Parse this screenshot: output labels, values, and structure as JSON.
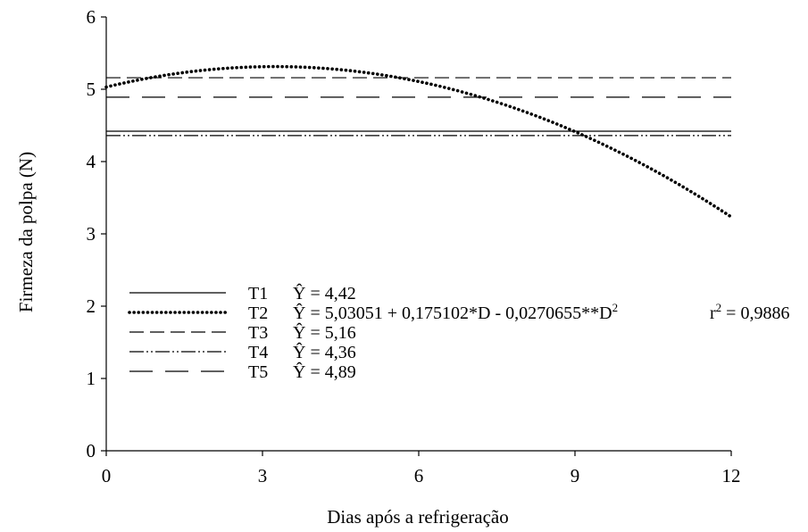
{
  "chart_data": {
    "type": "line",
    "title": "",
    "xlabel": "Dias após a refrigeração",
    "ylabel": "Firmeza da polpa (N)",
    "xlim": [
      0,
      12
    ],
    "ylim": [
      0,
      6
    ],
    "xticks": [
      "0",
      "3",
      "6",
      "9",
      "12"
    ],
    "yticks": [
      "0",
      "1",
      "2",
      "3",
      "4",
      "5",
      "6"
    ],
    "grid": false,
    "legend_position": "lower-left",
    "series": [
      {
        "name": "T1",
        "style": "solid",
        "equation_parts": [
          "Ŷ = 4,42"
        ],
        "r2": "",
        "x": [
          0,
          12
        ],
        "y": [
          4.42,
          4.42
        ]
      },
      {
        "name": "T2",
        "style": "dotted",
        "equation_parts": [
          "Ŷ = 5,03051 + 0,175102*D - 0,0270655**D",
          "2"
        ],
        "r2_label": "r",
        "r2_sup": "2",
        "r2": " = 0,9886",
        "model": {
          "a": 5.03051,
          "b": 0.175102,
          "c": -0.0270655
        },
        "x": [
          0,
          1,
          2,
          3,
          4,
          5,
          6,
          7,
          8,
          9,
          10,
          11,
          12
        ],
        "y": [
          5.03,
          5.18,
          5.27,
          5.31,
          5.3,
          5.23,
          5.11,
          4.93,
          4.7,
          4.42,
          4.08,
          3.68,
          3.23
        ]
      },
      {
        "name": "T3",
        "style": "dashed",
        "equation_parts": [
          "Ŷ = 5,16"
        ],
        "r2": "",
        "x": [
          0,
          12
        ],
        "y": [
          5.16,
          5.16
        ]
      },
      {
        "name": "T4",
        "style": "dash-dot-dot",
        "equation_parts": [
          "Ŷ = 4,36"
        ],
        "r2": "",
        "x": [
          0,
          12
        ],
        "y": [
          4.36,
          4.36
        ]
      },
      {
        "name": "T5",
        "style": "long-dash",
        "equation_parts": [
          "Ŷ = 4,89"
        ],
        "r2": "",
        "x": [
          0,
          12
        ],
        "y": [
          4.89,
          4.89
        ]
      }
    ]
  }
}
